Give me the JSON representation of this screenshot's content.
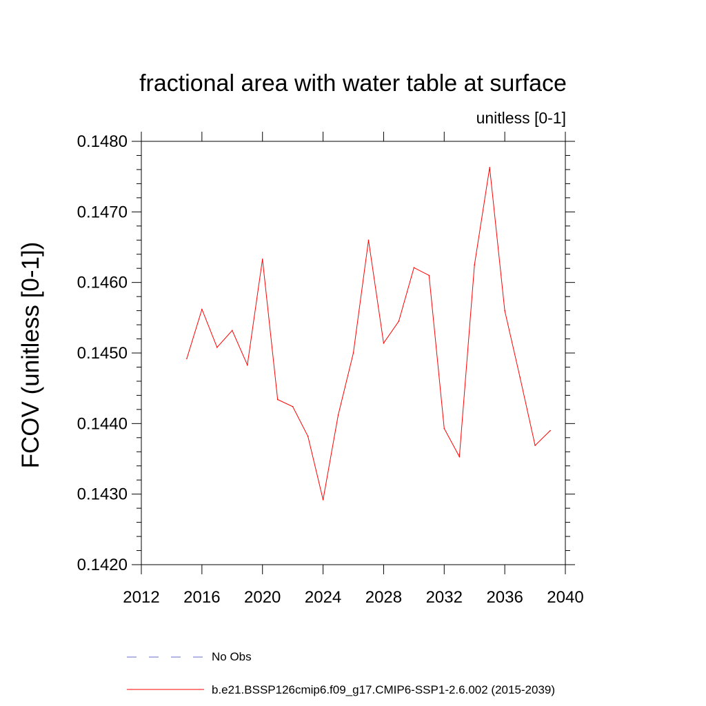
{
  "chart_data": {
    "type": "line",
    "title": "fractional area with water table at surface",
    "subtitle": "unitless [0-1]",
    "ylabel": "FCOV  (unitless [0-1])",
    "xlabel": "",
    "xlim": [
      2012,
      2040
    ],
    "ylim": [
      0.142,
      0.148
    ],
    "x_ticks": [
      "2012",
      "2016",
      "2020",
      "2024",
      "2028",
      "2032",
      "2036",
      "2040"
    ],
    "y_ticks": [
      "0.1420",
      "0.1430",
      "0.1440",
      "0.1450",
      "0.1460",
      "0.1470",
      "0.1480"
    ],
    "legend_position": "bottom",
    "series": [
      {
        "name": "No Obs",
        "color": "#6a6acd",
        "dash": "dashed",
        "x": [],
        "values": []
      },
      {
        "name": "b.e21.BSSP126cmip6.f09_g17.CMIP6-SSP1-2.6.002 (2015-2039)",
        "color": "#ff0000",
        "dash": "solid",
        "x": [
          2015,
          2016,
          2017,
          2018,
          2019,
          2020,
          2021,
          2022,
          2023,
          2024,
          2025,
          2026,
          2027,
          2028,
          2029,
          2030,
          2031,
          2032,
          2033,
          2034,
          2035,
          2036,
          2037,
          2038,
          2039
        ],
        "values": [
          0.14492,
          0.14562,
          0.14508,
          0.14532,
          0.14483,
          0.14633,
          0.14434,
          0.14424,
          0.14382,
          0.14292,
          0.14412,
          0.145,
          0.1466,
          0.14514,
          0.14545,
          0.14621,
          0.1461,
          0.14393,
          0.14353,
          0.14625,
          0.14763,
          0.1456,
          0.14466,
          0.14369,
          0.1439
        ]
      }
    ]
  }
}
